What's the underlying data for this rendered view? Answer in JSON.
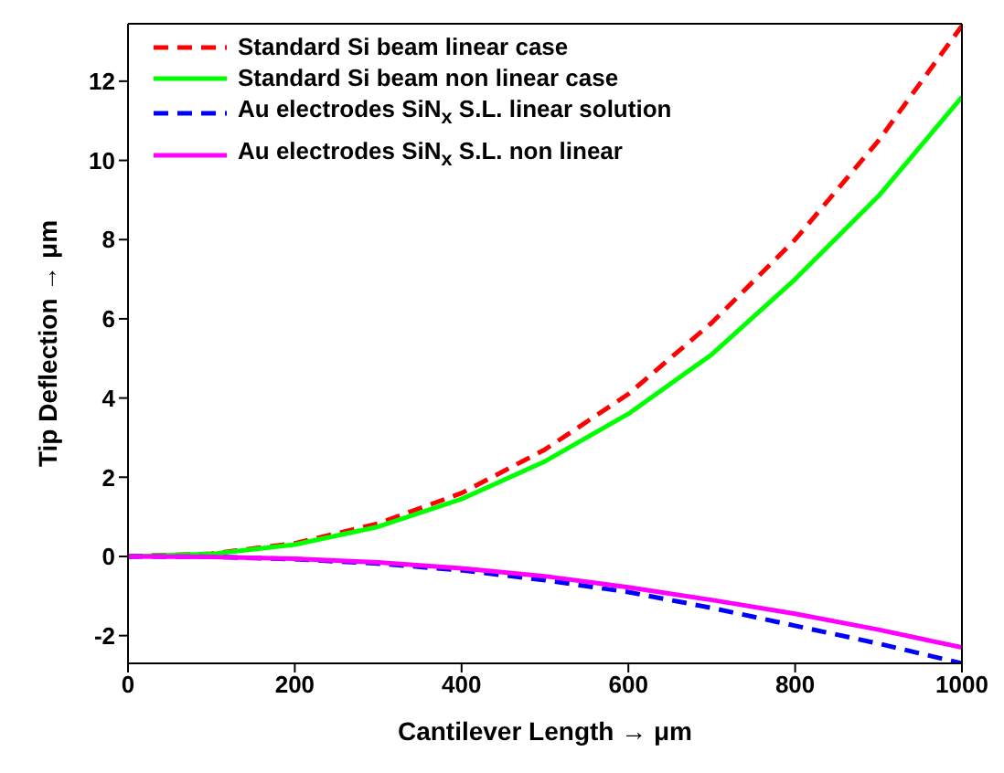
{
  "chart_data": {
    "type": "line",
    "xlabel": "Cantilever Length → μm",
    "ylabel": "Tip Deflection → μm",
    "x": [
      0,
      100,
      200,
      300,
      400,
      500,
      600,
      700,
      800,
      900,
      1000
    ],
    "series": [
      {
        "name": "Standard Si beam linear case",
        "color": "#ff0000",
        "line_style": "dashed",
        "values": [
          0,
          0.07,
          0.33,
          0.83,
          1.6,
          2.7,
          4.1,
          5.9,
          8.0,
          10.5,
          13.4
        ]
      },
      {
        "name": "Standard Si beam non linear case",
        "color": "#00ff00",
        "line_style": "solid",
        "values": [
          0,
          0.06,
          0.3,
          0.75,
          1.45,
          2.4,
          3.6,
          5.1,
          7.0,
          9.1,
          11.6
        ]
      },
      {
        "name": "Au electrodes SiN$_{x}$ S.L. linear solution",
        "color": "#0000ff",
        "line_style": "dashed",
        "values": [
          0,
          -0.01,
          -0.07,
          -0.18,
          -0.35,
          -0.6,
          -0.9,
          -1.3,
          -1.75,
          -2.2,
          -2.7
        ]
      },
      {
        "name": "Au electrodes SiN$_{x}$ S.L. non linear",
        "color": "#ff00ff",
        "line_style": "solid",
        "values": [
          0,
          -0.01,
          -0.06,
          -0.15,
          -0.3,
          -0.5,
          -0.78,
          -1.1,
          -1.45,
          -1.85,
          -2.3
        ]
      }
    ],
    "xlim": [
      0,
      1000
    ],
    "xticks": [
      0,
      200,
      400,
      600,
      800,
      1000
    ],
    "ylim": [
      -2.7,
      13.45
    ],
    "yticks": [
      -2,
      0,
      2,
      4,
      6,
      8,
      10,
      12
    ],
    "grid": false,
    "legend": "top left",
    "marker": "none"
  }
}
